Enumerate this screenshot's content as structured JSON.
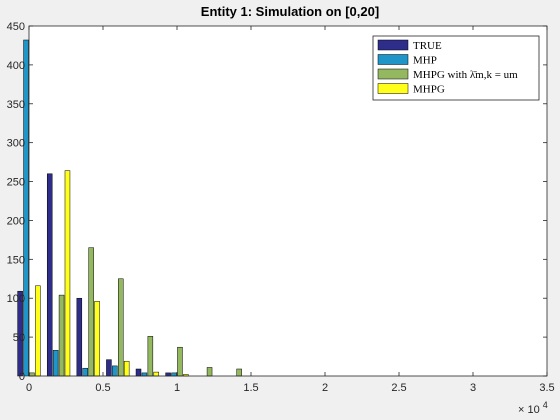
{
  "chart_data": {
    "type": "bar",
    "title": "Entity 1: Simulation on [0,20]",
    "xlabel": "",
    "ylabel": "",
    "xlim": [
      0,
      35000
    ],
    "ylim": [
      0,
      450
    ],
    "x_ticks": [
      0,
      5000,
      10000,
      15000,
      20000,
      25000,
      30000,
      35000
    ],
    "x_tick_labels": [
      "0",
      "0.5",
      "1",
      "1.5",
      "2",
      "2.5",
      "3",
      "3.5"
    ],
    "x_exponent_label": "× 10",
    "x_exponent_power": "4",
    "y_ticks": [
      0,
      50,
      100,
      150,
      200,
      250,
      300,
      350,
      400,
      450
    ],
    "y_tick_labels": [
      "0",
      "50",
      "100",
      "150",
      "200",
      "250",
      "300",
      "350",
      "400",
      "450"
    ],
    "categories": [
      0,
      2000,
      4000,
      6000,
      8000,
      10000,
      12000,
      14000
    ],
    "series": [
      {
        "name": "TRUE",
        "color": "#2e2e8a",
        "values": [
          109,
          260,
          100,
          21,
          9,
          4,
          0,
          0
        ]
      },
      {
        "name": "MHP",
        "color": "#1f95c8",
        "values": [
          432,
          33,
          10,
          13,
          4,
          4,
          0,
          0
        ]
      },
      {
        "name": "MHPG with λ̄m,k = um",
        "color": "#94b860",
        "values": [
          4,
          104,
          165,
          125,
          51,
          37,
          11,
          9
        ]
      },
      {
        "name": "MHPG",
        "color": "#ffff1a",
        "values": [
          116,
          264,
          96,
          19,
          5,
          2,
          0,
          0
        ]
      }
    ],
    "grid": false,
    "legend_position": "top-right"
  }
}
